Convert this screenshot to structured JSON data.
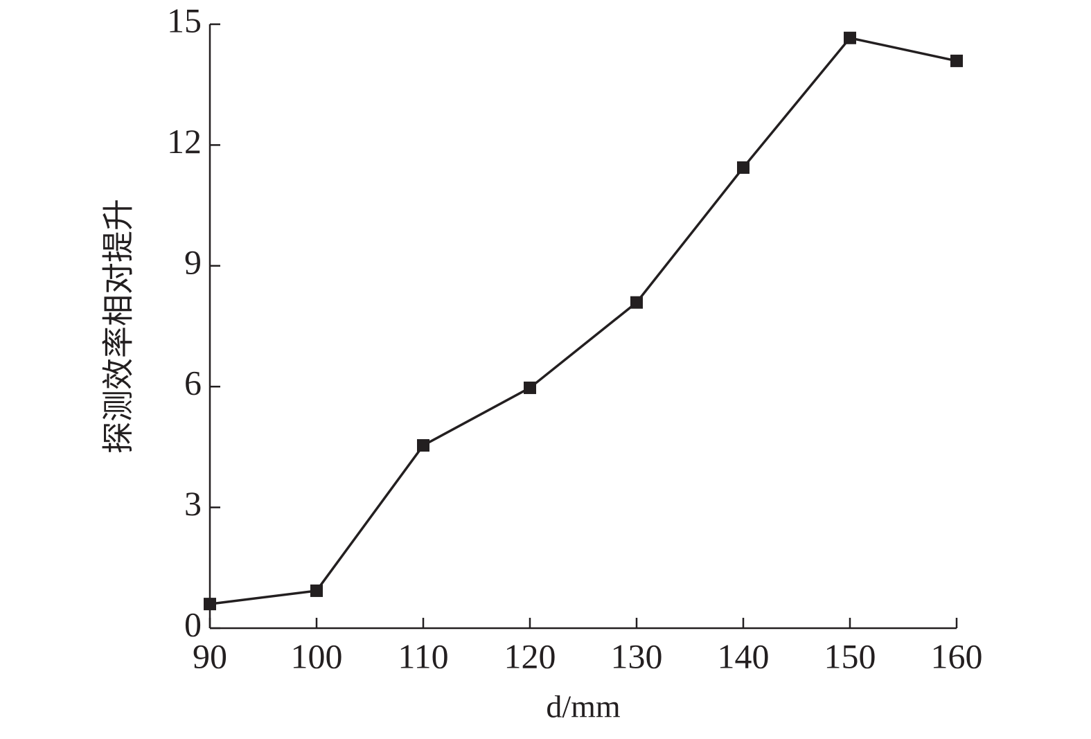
{
  "chart_data": {
    "type": "line",
    "x_label": "d/mm",
    "y_label": "探测效率相对提升",
    "x": [
      90,
      100,
      110,
      120,
      130,
      140,
      150,
      160
    ],
    "values": [
      0.6,
      0.93,
      4.54,
      5.97,
      8.09,
      11.44,
      14.66,
      14.09
    ],
    "color": "#231f20",
    "marker": "square",
    "xlim": [
      90,
      160
    ],
    "xticks": [
      90,
      100,
      110,
      120,
      130,
      140,
      150,
      160
    ],
    "ylim": [
      0,
      15
    ],
    "yticks": [
      0,
      3,
      6,
      9,
      12,
      15
    ],
    "grid": false
  }
}
